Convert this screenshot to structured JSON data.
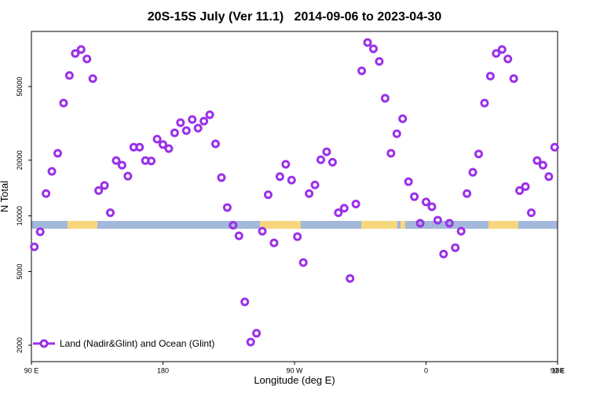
{
  "chart_data": {
    "type": "scatter",
    "title": "20S-15S July (Ver 11.1)   2014-09-06 to 2023-04-30",
    "xlabel": "Longitude (deg E)",
    "ylabel": "N Total",
    "xlim": [
      90,
      450
    ],
    "xticks": [
      {
        "value": 90,
        "label": "90 E"
      },
      {
        "value": 180,
        "label": "180"
      },
      {
        "value": 270,
        "label": "90 W"
      },
      {
        "value": 360,
        "label": "0"
      },
      {
        "value": 450,
        "label": "90 E"
      },
      {
        "value": 540,
        "label": "180"
      }
    ],
    "ylim": [
      1630,
      99300
    ],
    "yscale": "log",
    "yticks": [
      2000,
      5000,
      10000,
      20000,
      50000
    ],
    "legend": "lower left",
    "series": [
      {
        "name": "Land (Nadir&Glint) and Ocean (Glint)",
        "color": "#9b30e8",
        "x": [
          92,
          96,
          100,
          104,
          108,
          112,
          116,
          120,
          124,
          128,
          132,
          136,
          140,
          144,
          148,
          152,
          156,
          160,
          164,
          168,
          172,
          176,
          180,
          184,
          188,
          192,
          196,
          200,
          204,
          208,
          212,
          216,
          220,
          224,
          228,
          232,
          236,
          240,
          244,
          248,
          252,
          256,
          260,
          264,
          268,
          272,
          276,
          280,
          284,
          288,
          292,
          296,
          300,
          304,
          308,
          312,
          316,
          320,
          324,
          328,
          332,
          336,
          340,
          344,
          348,
          352,
          356,
          360,
          364,
          368,
          372,
          376,
          380,
          384,
          388,
          392,
          396,
          400,
          404,
          408,
          412,
          416,
          420,
          424,
          428,
          432,
          436,
          440,
          444,
          448
        ],
        "values": [
          6800,
          8200,
          13200,
          17400,
          21800,
          40700,
          57400,
          75500,
          79300,
          70500,
          55200,
          13700,
          14600,
          10400,
          19900,
          18800,
          16400,
          23500,
          23500,
          19900,
          19800,
          26000,
          24300,
          23100,
          28100,
          31900,
          28900,
          33200,
          29800,
          32500,
          35200,
          24500,
          16100,
          11100,
          8900,
          7800,
          3430,
          2080,
          2320,
          8260,
          13000,
          7140,
          16300,
          19000,
          15600,
          7720,
          5590,
          13200,
          14700,
          20100,
          22200,
          19500,
          10400,
          11000,
          4590,
          11600,
          60800,
          86500,
          80000,
          68400,
          43200,
          21800,
          27800,
          33500,
          15300,
          12700,
          9120,
          11900,
          11200,
          9480,
          6220,
          9120,
          6730,
          8260,
          13200,
          17200,
          21600,
          40700,
          56900,
          75500,
          79300,
          70500,
          55200,
          13700,
          14400,
          10400,
          19900,
          18800,
          16300,
          23500
        ]
      }
    ]
  }
}
